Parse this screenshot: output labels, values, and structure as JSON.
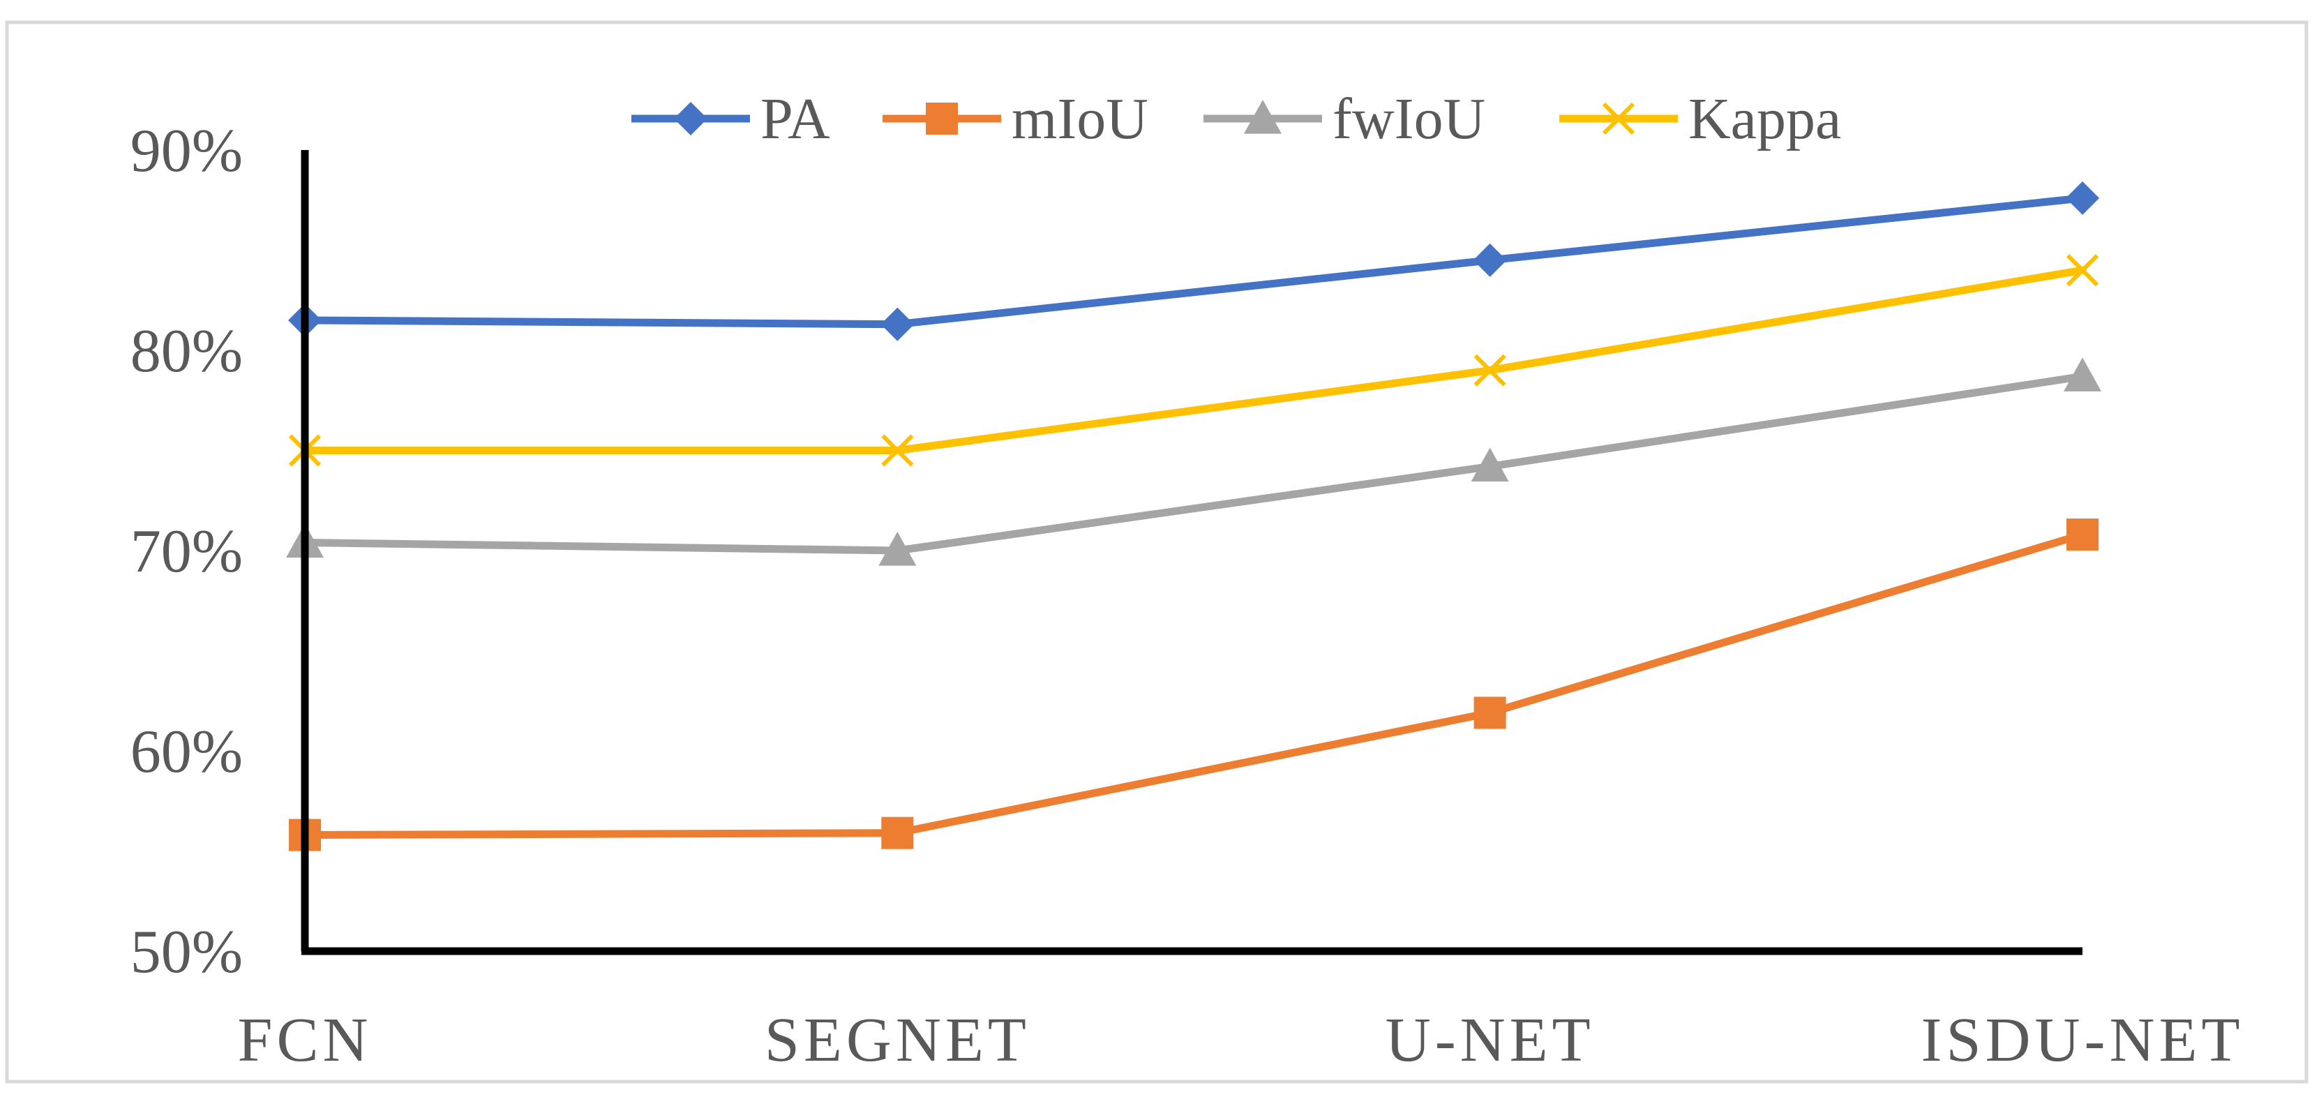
{
  "chart_data": {
    "type": "line",
    "categories": [
      "FCN",
      "SEGNET",
      "U-NET",
      "ISDU-NET"
    ],
    "series": [
      {
        "name": "PA",
        "color": "#4472C4",
        "marker": "diamond",
        "values": [
          81.5,
          81.3,
          84.5,
          87.6
        ]
      },
      {
        "name": "mIoU",
        "color": "#ED7D31",
        "marker": "square",
        "values": [
          55.8,
          55.9,
          61.9,
          70.8
        ]
      },
      {
        "name": "fwIoU",
        "color": "#A5A5A5",
        "marker": "triangle",
        "values": [
          70.4,
          70.0,
          74.2,
          78.7
        ]
      },
      {
        "name": "Kappa",
        "color": "#FFC000",
        "marker": "x",
        "values": [
          75.0,
          75.0,
          79.0,
          84.0
        ]
      }
    ],
    "yticks": [
      "50%",
      "60%",
      "70%",
      "80%",
      "90%"
    ],
    "ylim": [
      50,
      90
    ],
    "title": "",
    "xlabel": "",
    "ylabel": "",
    "legend": "top",
    "grid": false
  }
}
